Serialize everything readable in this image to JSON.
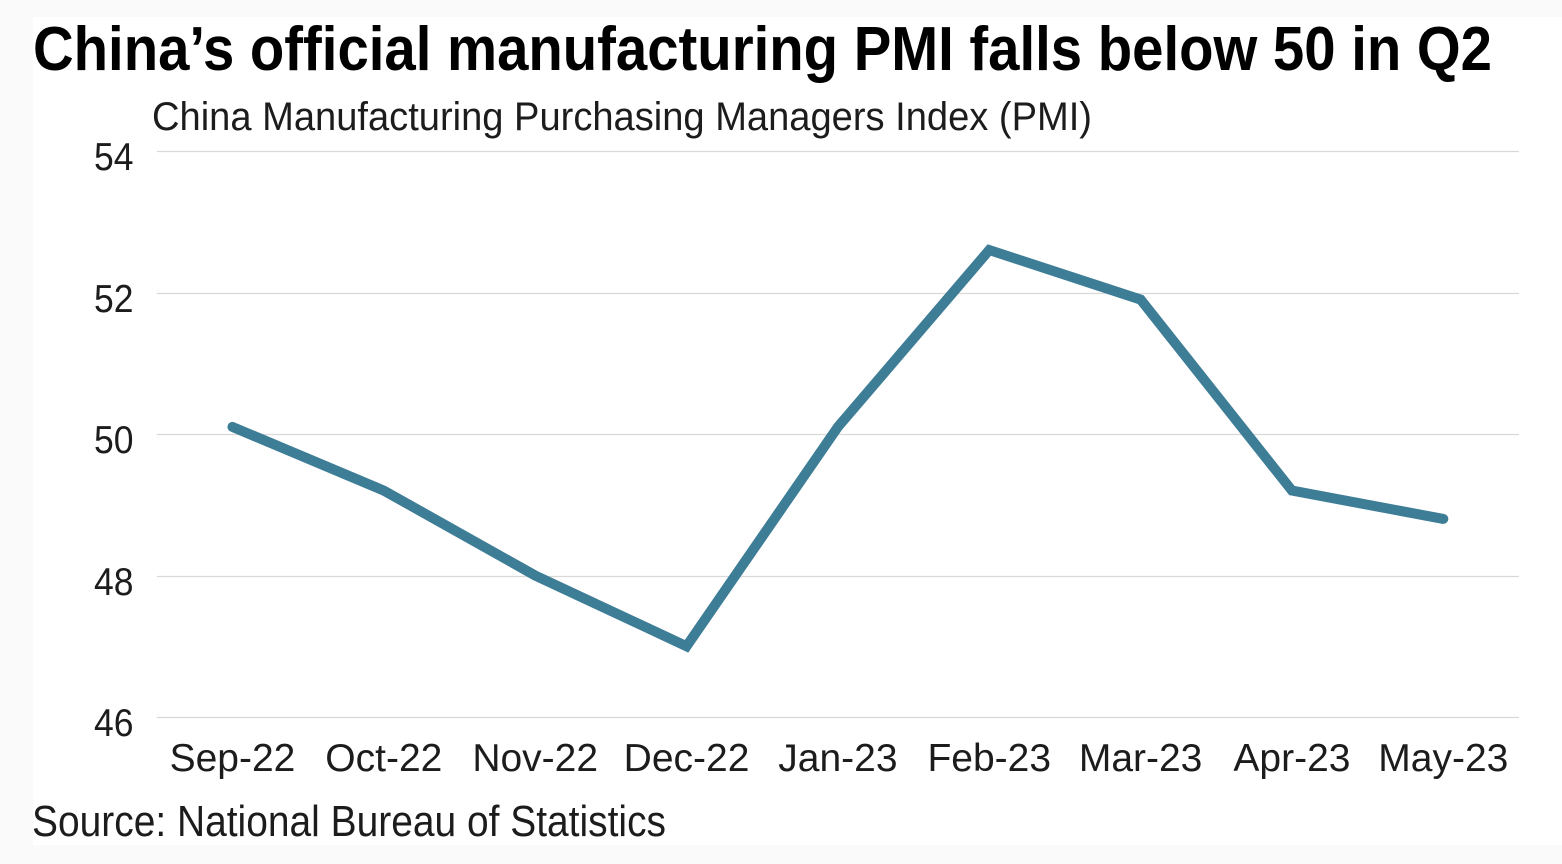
{
  "page": {
    "background": "#fafafa",
    "panel_background": "#ffffff"
  },
  "chart_data": {
    "type": "line",
    "title": "China’s official manufacturing PMI falls below 50 in Q2",
    "subtitle": "China Manufacturing Purchasing Managers Index (PMI)",
    "source": "Source: National Bureau of Statistics",
    "categories": [
      "Sep-22",
      "Oct-22",
      "Nov-22",
      "Dec-22",
      "Jan-23",
      "Feb-23",
      "Mar-23",
      "Apr-23",
      "May-23"
    ],
    "values": [
      50.1,
      49.2,
      48.0,
      47.0,
      50.1,
      52.6,
      51.9,
      49.2,
      48.8
    ],
    "y_ticks": [
      46,
      48,
      50,
      52,
      54
    ],
    "ylim": [
      46,
      54
    ],
    "grid": "horizontal-only",
    "legend": "none",
    "line_color": "#3e7d96",
    "grid_color": "#d9d9d9"
  }
}
